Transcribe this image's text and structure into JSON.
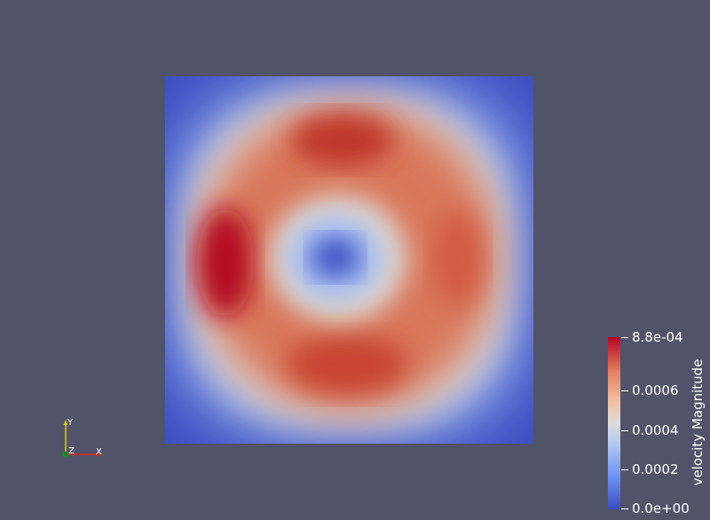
{
  "colorbar": {
    "title": "velocity Magnitude",
    "labels": [
      "8.8e-04",
      "0.0006",
      "0.0004",
      "0.0002",
      "0.0e+00"
    ]
  },
  "axes": {
    "x_label": "X",
    "y_label": "Y",
    "z_label": "Z"
  },
  "colors": {
    "background": "#515468",
    "min": "#3b4cc0",
    "mid": "#dddcdc",
    "max": "#b40426",
    "axis_x": "#d62728",
    "axis_y": "#d4c21a",
    "axis_z": "#1b8a1b"
  },
  "colormap": "Cool to Warm"
}
